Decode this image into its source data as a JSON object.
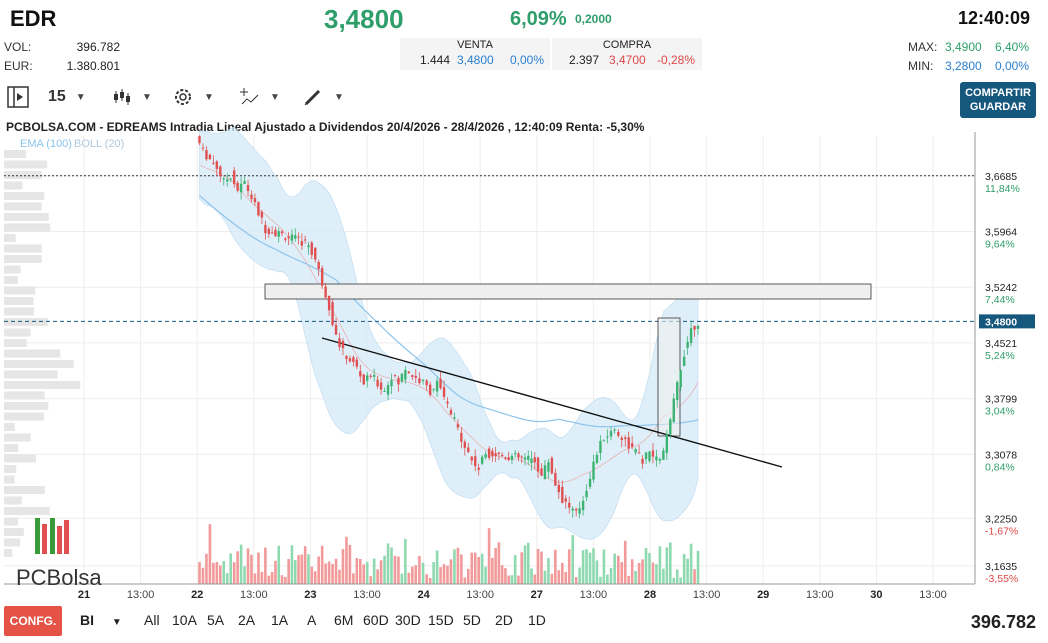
{
  "header": {
    "ticker": "EDR",
    "price": "3,4800",
    "change_pct": "6,09%",
    "change_abs": "0,2000",
    "time": "12:40:09",
    "vol_label": "VOL:",
    "vol_value": "396.782",
    "eur_label": "EUR:",
    "eur_value": "1.380.801",
    "max_label": "MAX:",
    "max_value": "3,4900",
    "max_pct": "6,40%",
    "min_label": "MIN:",
    "min_value": "3,2800",
    "min_pct": "0,00%"
  },
  "quotes": {
    "sell": {
      "title": "VENTA",
      "qty": "1.444",
      "price": "3,4800",
      "pct": "0,00%"
    },
    "buy": {
      "title": "COMPRA",
      "qty": "2.397",
      "price": "3,4700",
      "pct": "-0,28%"
    }
  },
  "toolbar": {
    "interval": "15",
    "share_label_1": "COMPARTIR",
    "share_label_2": "GUARDAR"
  },
  "chart_data": {
    "type": "candlestick",
    "title": "PCBOLSA.COM - EDREAMS Intradia Lineal Ajustado a Dividendos 20/4/2026 - 28/4/2026 , 12:40:09 Renta: -5,30%",
    "legend": [
      "EMA (100)",
      "BOLL (20)"
    ],
    "ylim": [
      3.14,
      3.72
    ],
    "y_ticks": [
      {
        "value": 3.6685,
        "label": "3,6685",
        "pct": "11,84%"
      },
      {
        "value": 3.5964,
        "label": "3,5964",
        "pct": "9,64%"
      },
      {
        "value": 3.5242,
        "label": "3,5242",
        "pct": "7,44%"
      },
      {
        "value": 3.4521,
        "label": "3,4521",
        "pct": "5,24%"
      },
      {
        "value": 3.3799,
        "label": "3,3799",
        "pct": "3,04%"
      },
      {
        "value": 3.3078,
        "label": "3,3078",
        "pct": "0,84%"
      },
      {
        "value": 3.225,
        "label": "3,2250",
        "pct": "-1,67%"
      },
      {
        "value": 3.1635,
        "label": "3,1635",
        "pct": "-3,55%"
      }
    ],
    "last_price": {
      "value": 3.48,
      "label": "3,4800"
    },
    "reference_line": 3.6685,
    "x_labels": [
      "21",
      "13:00",
      "22",
      "13:00",
      "23",
      "13:00",
      "24",
      "13:00",
      "27",
      "13:00",
      "28",
      "13:00",
      "29",
      "13:00",
      "30",
      "13:00"
    ],
    "close_series": [
      3.72,
      3.7,
      3.69,
      3.68,
      3.66,
      3.67,
      3.65,
      3.66,
      3.64,
      3.62,
      3.6,
      3.58,
      3.56,
      3.53,
      3.5,
      3.46,
      3.44,
      3.43,
      3.42,
      3.4,
      3.41,
      3.4,
      3.39,
      3.41,
      3.4,
      3.42,
      3.41,
      3.4,
      3.39,
      3.4,
      3.38,
      3.36,
      3.34,
      3.32,
      3.3,
      3.29,
      3.31,
      3.3,
      3.28,
      3.3,
      3.27,
      3.25,
      3.24,
      3.23,
      3.25,
      3.28,
      3.31,
      3.33,
      3.34,
      3.33,
      3.32,
      3.31,
      3.3,
      3.31,
      3.3,
      3.31,
      3.35,
      3.4,
      3.44,
      3.47,
      3.48
    ]
  },
  "bottom": {
    "config_label": "CONFG.",
    "mode_label": "BI",
    "periods": [
      "All",
      "10A",
      "5A",
      "2A",
      "1A",
      "A",
      "6M",
      "60D",
      "30D",
      "15D",
      "5D",
      "2D",
      "1D"
    ],
    "volume_total": "396.782"
  },
  "logo_text": "PCBolsa"
}
